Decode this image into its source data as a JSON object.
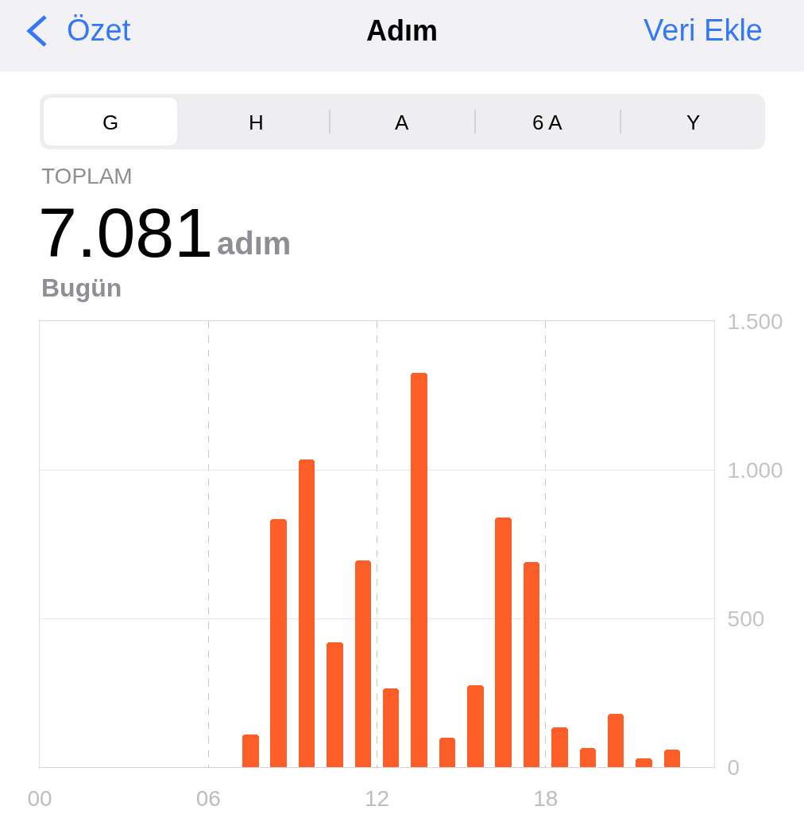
{
  "chart_data": {
    "type": "bar",
    "title": "Adım",
    "annotations": [
      "Özet",
      "Veri Ekle",
      "G",
      "H",
      "A",
      "6 A",
      "Y",
      "TOPLAM",
      "7.081",
      "adım",
      "Bugün"
    ],
    "x": [
      7.5,
      8.5,
      9.5,
      10.5,
      11.5,
      12.5,
      13.5,
      14.5,
      15.5,
      16.5,
      17.5,
      18.5,
      19.5,
      20.5,
      21.5,
      22.5
    ],
    "values": [
      110,
      835,
      1035,
      420,
      695,
      265,
      1325,
      100,
      275,
      840,
      690,
      135,
      65,
      180,
      30,
      60
    ],
    "color": "#fd5d27",
    "xlim": [
      0,
      24
    ],
    "xticks": [
      {
        "value": 0,
        "label": "00"
      },
      {
        "value": 6,
        "label": "06"
      },
      {
        "value": 12,
        "label": "12"
      },
      {
        "value": 18,
        "label": "18"
      }
    ],
    "ylim": [
      0,
      1500
    ],
    "yticks": [
      0,
      500,
      {
        "value": 1000,
        "label": "1.000"
      },
      {
        "value": 1500,
        "label": "1.500"
      }
    ],
    "grid": true
  }
}
